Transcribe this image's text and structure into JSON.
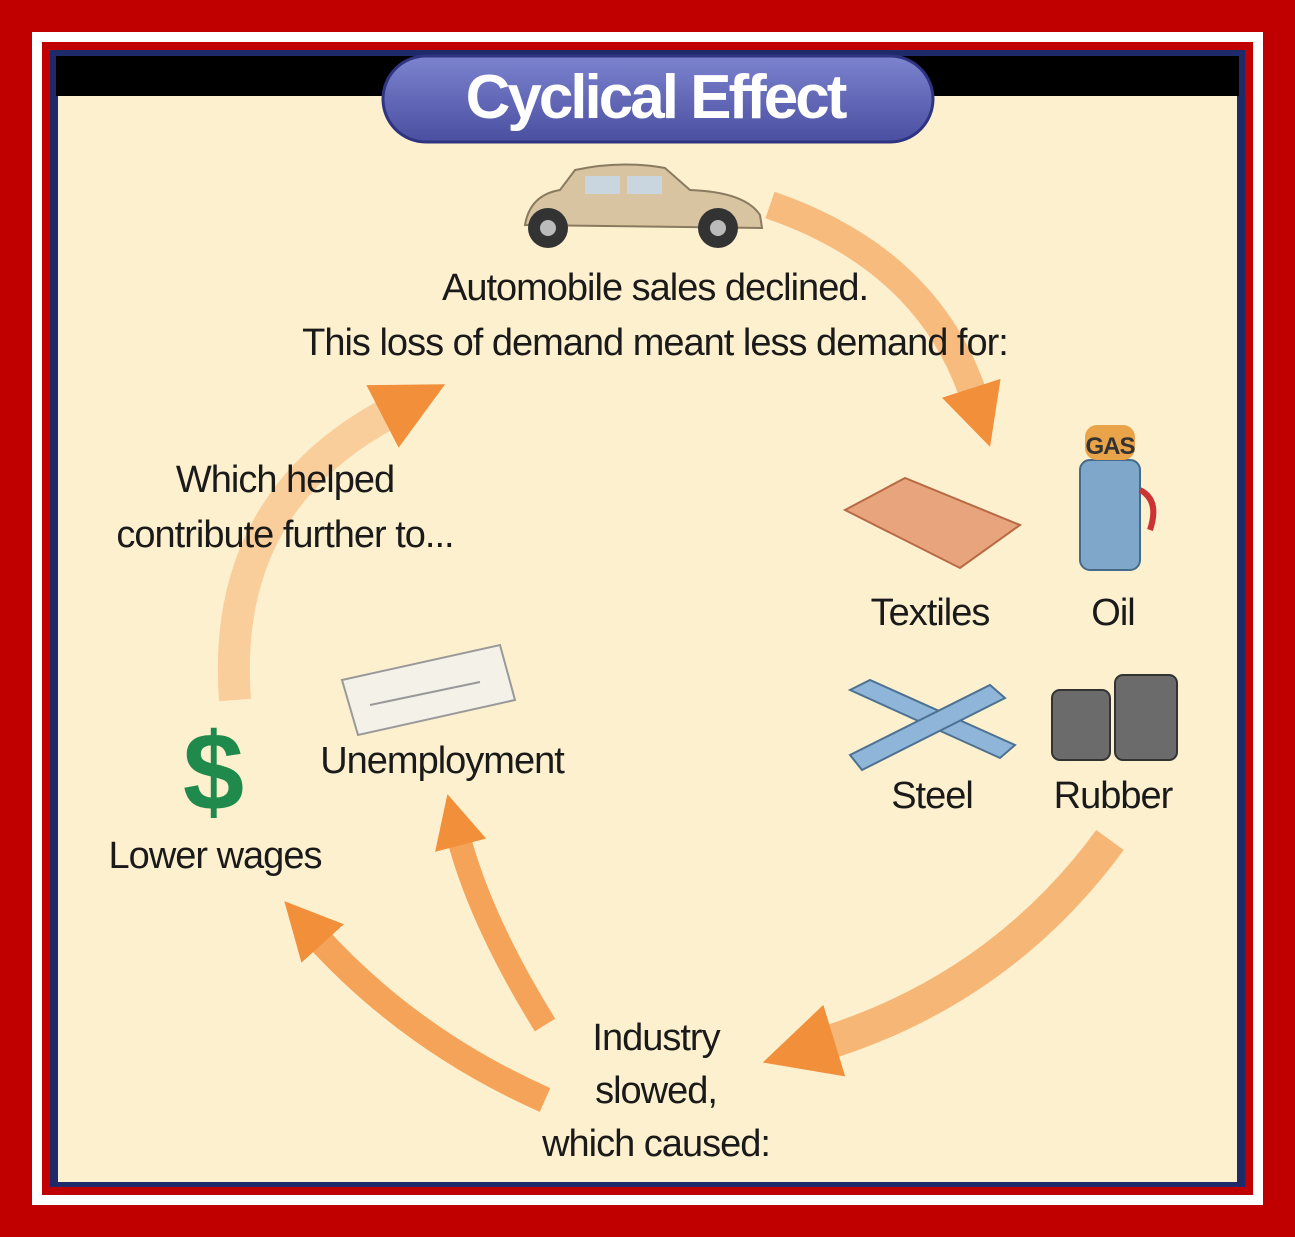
{
  "title": "Cyclical Effect",
  "automobile": {
    "lines": [
      "Automobile sales declined.",
      "This loss of demand meant less demand for:"
    ]
  },
  "industries": [
    "Textiles",
    "Oil",
    "Steel",
    "Rubber"
  ],
  "gas_sign": "GAS",
  "industry": {
    "lines": [
      "Industry",
      "slowed,",
      "which caused:"
    ]
  },
  "effects": [
    "Unemployment",
    "Lower wages"
  ],
  "dollar_sign": "$",
  "feedback": {
    "lines": [
      "Which helped",
      "contribute further to..."
    ]
  }
}
